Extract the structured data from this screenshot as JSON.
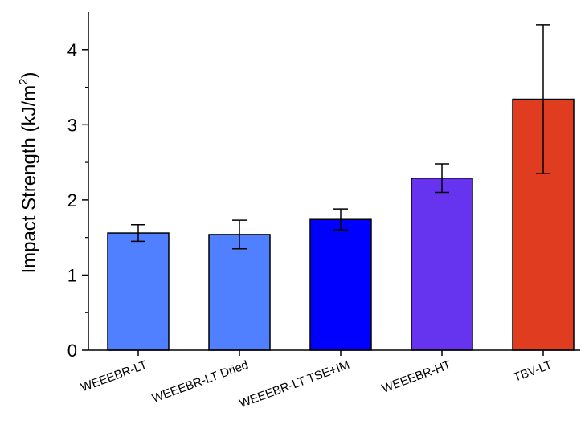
{
  "chart_data": {
    "type": "bar",
    "title": "",
    "xlabel": "",
    "ylabel": "Impact Strength (kJ/m",
    "ylabel_superscript": "2",
    "ylabel_close": ")",
    "ylim": [
      0,
      4.5
    ],
    "yticks": [
      "0",
      "1",
      "2",
      "3",
      "4"
    ],
    "categories": [
      "WEEEBR-LT",
      "WEEEBR-LT Dried",
      "WEEEBR-LT TSE+IM",
      "WEEEBR-HT",
      "TBV-LT"
    ],
    "values": [
      1.56,
      1.54,
      1.74,
      2.29,
      3.34
    ],
    "errors": [
      0.11,
      0.19,
      0.14,
      0.19,
      0.99
    ],
    "colors": [
      "#5080ff",
      "#5080ff",
      "#0000ff",
      "#6633ee",
      "#e03c20"
    ],
    "grid": false
  }
}
